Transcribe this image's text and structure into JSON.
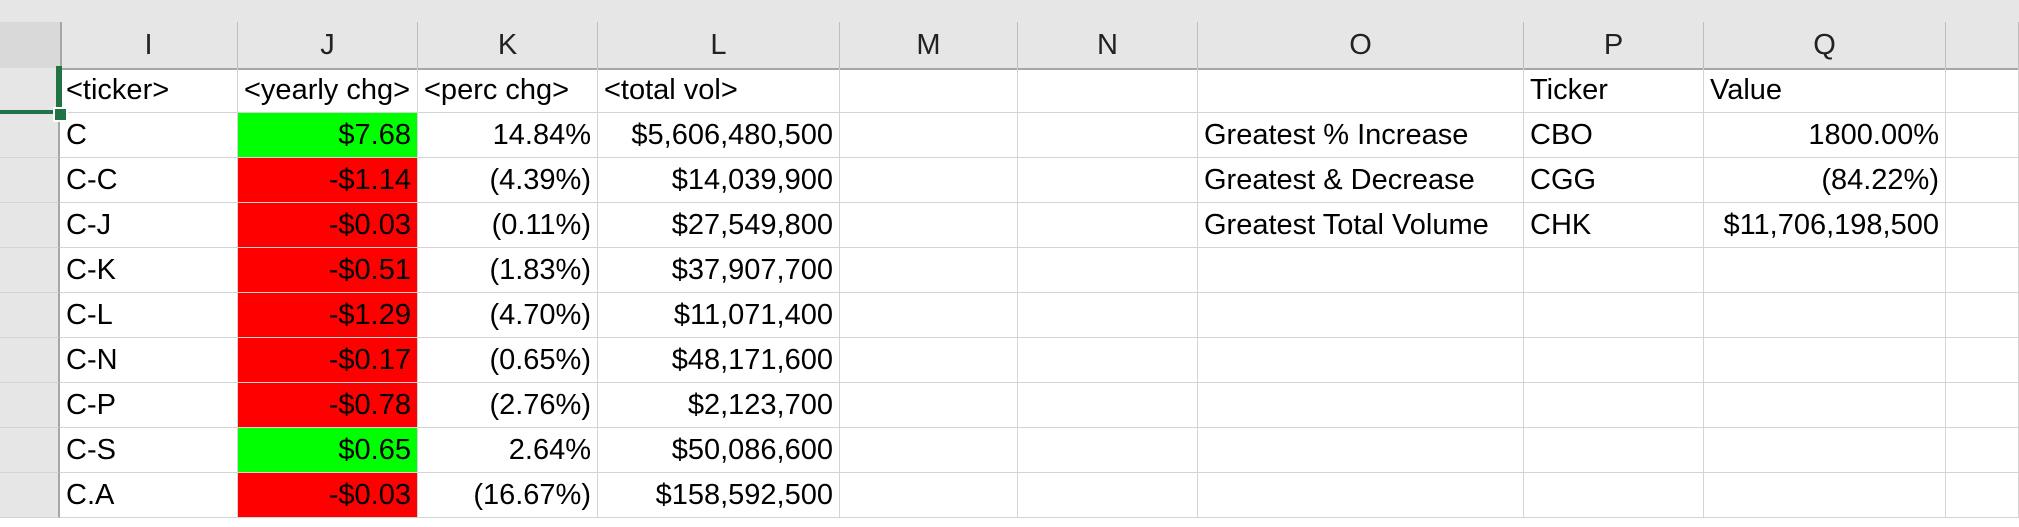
{
  "columns": [
    "I",
    "J",
    "K",
    "L",
    "M",
    "N",
    "O",
    "P",
    "Q"
  ],
  "header_row": {
    "I": "<ticker>",
    "J": "<yearly chg>",
    "K": "<perc chg>",
    "L": "<total vol>",
    "P": "Ticker",
    "Q": "Value"
  },
  "rows": [
    {
      "ticker": "C",
      "yearly": "$7.68",
      "perc": "14.84%",
      "vol": "$5,606,480,500",
      "sign": "pos",
      "O": "Greatest % Increase",
      "P": "CBO",
      "Q": "1800.00%"
    },
    {
      "ticker": "C-C",
      "yearly": "-$1.14",
      "perc": "(4.39%)",
      "vol": "$14,039,900",
      "sign": "neg",
      "O": "Greatest & Decrease",
      "P": "CGG",
      "Q": "(84.22%)"
    },
    {
      "ticker": "C-J",
      "yearly": "-$0.03",
      "perc": "(0.11%)",
      "vol": "$27,549,800",
      "sign": "neg",
      "O": "Greatest Total Volume",
      "P": "CHK",
      "Q": "$11,706,198,500"
    },
    {
      "ticker": "C-K",
      "yearly": "-$0.51",
      "perc": "(1.83%)",
      "vol": "$37,907,700",
      "sign": "neg",
      "O": "",
      "P": "",
      "Q": ""
    },
    {
      "ticker": "C-L",
      "yearly": "-$1.29",
      "perc": "(4.70%)",
      "vol": "$11,071,400",
      "sign": "neg",
      "O": "",
      "P": "",
      "Q": ""
    },
    {
      "ticker": "C-N",
      "yearly": "-$0.17",
      "perc": "(0.65%)",
      "vol": "$48,171,600",
      "sign": "neg",
      "O": "",
      "P": "",
      "Q": ""
    },
    {
      "ticker": "C-P",
      "yearly": "-$0.78",
      "perc": "(2.76%)",
      "vol": "$2,123,700",
      "sign": "neg",
      "O": "",
      "P": "",
      "Q": ""
    },
    {
      "ticker": "C-S",
      "yearly": "$0.65",
      "perc": "2.64%",
      "vol": "$50,086,600",
      "sign": "pos",
      "O": "",
      "P": "",
      "Q": ""
    },
    {
      "ticker": "C.A",
      "yearly": "-$0.03",
      "perc": "(16.67%)",
      "vol": "$158,592,500",
      "sign": "neg",
      "O": "",
      "P": "",
      "Q": ""
    }
  ],
  "colors": {
    "positive_fill": "#00ff00",
    "negative_fill": "#ff0000",
    "selection": "#217346"
  }
}
